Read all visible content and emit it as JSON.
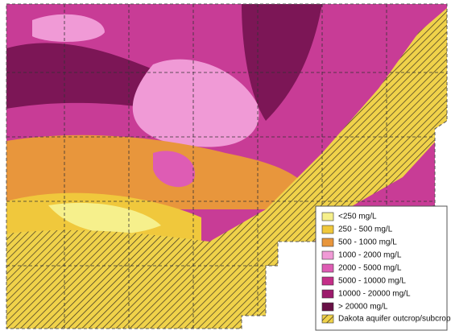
{
  "legend": {
    "items": [
      {
        "label": "<250 mg/L",
        "color": "#f6f08c"
      },
      {
        "label": "250 - 500 mg/L",
        "color": "#f0c83c"
      },
      {
        "label": "500 - 1000 mg/L",
        "color": "#e8963c"
      },
      {
        "label": "1000 - 2000 mg/L",
        "color": "#f09ad6"
      },
      {
        "label": "2000 - 5000 mg/L",
        "color": "#de5cb4"
      },
      {
        "label": "5000 - 10000 mg/L",
        "color": "#c42e88"
      },
      {
        "label": "10000 - 20000 mg/L",
        "color": "#9c1a6c"
      },
      {
        "label": "> 20000 mg/L",
        "color": "#681046"
      }
    ],
    "outcrop_label": "Dakota aquifer outcrop/subcrop"
  }
}
